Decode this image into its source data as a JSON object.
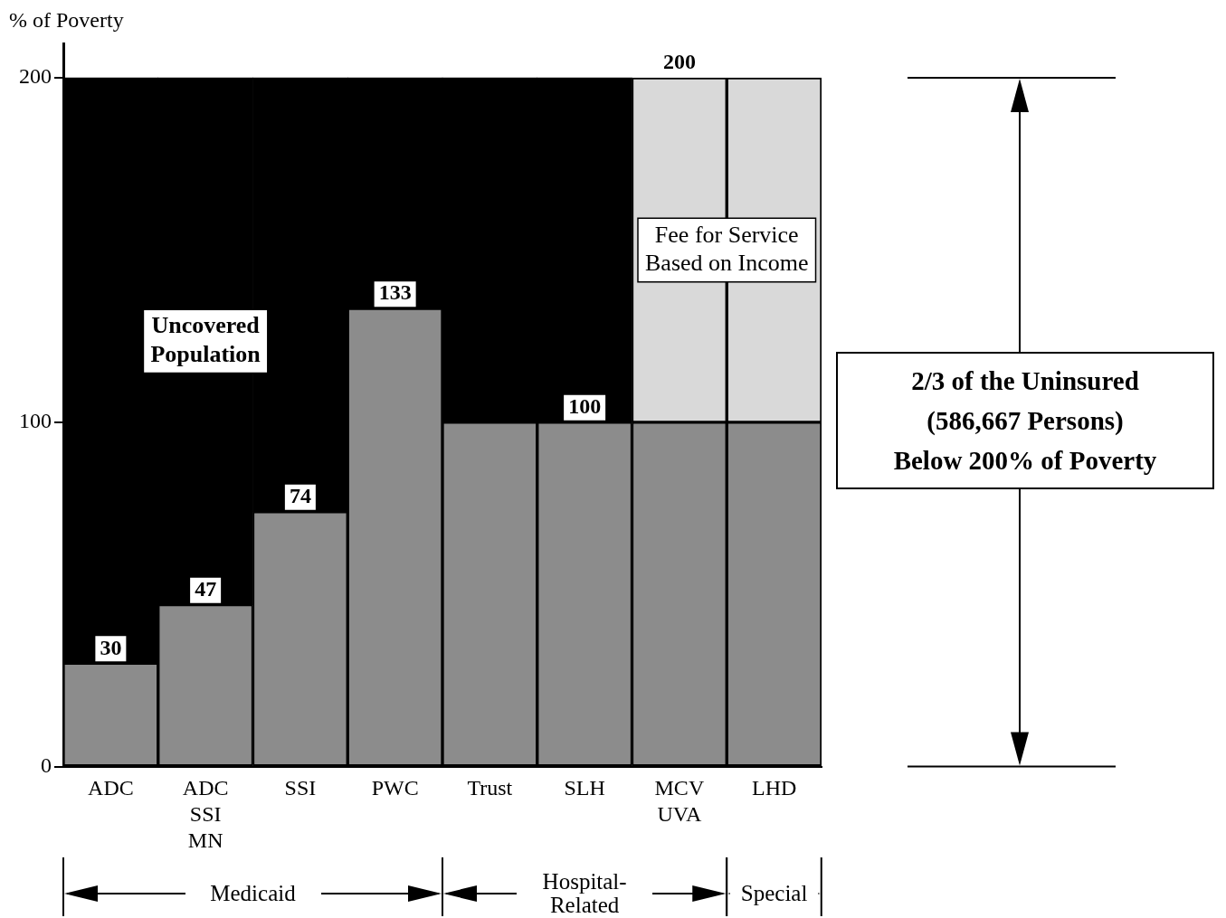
{
  "chart_data": {
    "type": "bar",
    "stacked": true,
    "ylabel": "% of Poverty",
    "categories": [
      "ADC",
      "ADC\nSSI\nMN",
      "SSI",
      "PWC",
      "Trust",
      "SLH",
      "MCV\nUVA",
      "LHD"
    ],
    "series": [
      {
        "color": "#8c8c8c",
        "values": [
          30,
          47,
          74,
          133,
          100,
          100,
          100,
          100
        ],
        "value_labels": [
          "30",
          "47",
          "74",
          "133",
          null,
          "100",
          null,
          null
        ]
      },
      {
        "name": "Fee for Service\nBased on Income",
        "color": "#d9d9d9",
        "values": [
          null,
          null,
          null,
          null,
          null,
          null,
          100,
          100
        ]
      },
      {
        "name": "Uncovered\nPopulation",
        "color": "#000000",
        "values": [
          170,
          153,
          126,
          67,
          100,
          100,
          null,
          null
        ]
      }
    ],
    "totals": [
      null,
      null,
      null,
      null,
      null,
      null,
      "200",
      null
    ],
    "ylim": [
      0,
      210
    ],
    "yticks": [
      0,
      100,
      200
    ],
    "grid": false,
    "legend": false,
    "annotations": [
      "2/3 of the Uninsured\n(586,667 Persons)\nBelow 200% of Poverty",
      "Medicaid",
      "Hospital-\nRelated",
      "Special"
    ]
  }
}
